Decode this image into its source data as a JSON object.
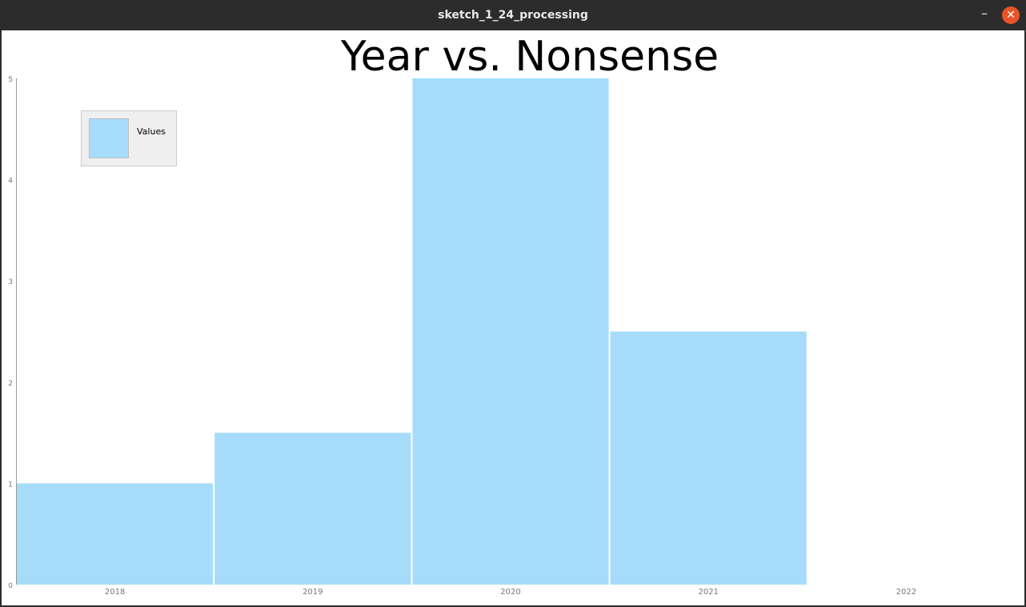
{
  "window": {
    "title": "sketch_1_24_processing",
    "minimize_icon": "–",
    "close_icon": "✕"
  },
  "chart_data": {
    "type": "bar",
    "title": "Year vs. Nonsense",
    "categories": [
      "2018",
      "2019",
      "2020",
      "2021",
      "2022"
    ],
    "series": [
      {
        "name": "Values",
        "values": [
          1,
          1.5,
          5,
          2.5,
          0
        ]
      }
    ],
    "yticks": [
      "0",
      "1",
      "2",
      "3",
      "4",
      "5"
    ],
    "ylim": [
      0,
      5
    ],
    "xlabel": "",
    "ylabel": "",
    "grid": false,
    "legend_position": "top-left",
    "colors": {
      "bar": "#a6dcfa",
      "axis": "#999999",
      "tick_text": "#777777"
    }
  }
}
